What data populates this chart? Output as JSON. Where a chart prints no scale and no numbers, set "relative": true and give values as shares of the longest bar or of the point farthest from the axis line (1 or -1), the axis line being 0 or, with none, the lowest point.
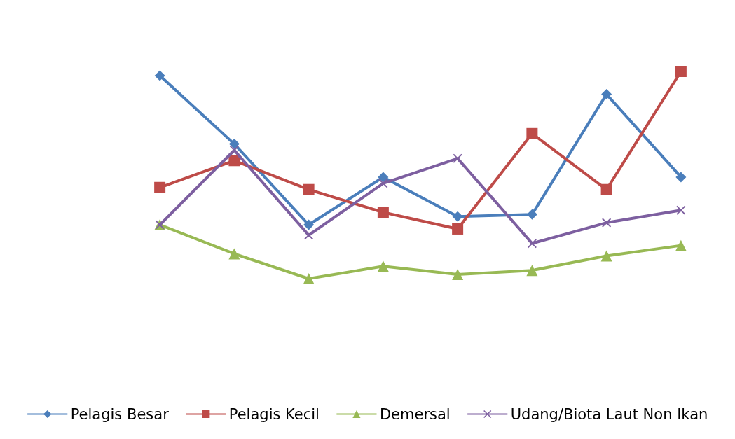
{
  "chart_data": {
    "type": "line",
    "relative": true,
    "categories": [
      null,
      null,
      null,
      null,
      null,
      null,
      null,
      null
    ],
    "series": [
      {
        "name": "Pelagis Besar",
        "color": "#4a7ebb",
        "marker": "diamond",
        "values": [
          0.98,
          0.65,
          0.26,
          0.49,
          0.3,
          0.31,
          0.89,
          0.49
        ]
      },
      {
        "name": "Pelagis Kecil",
        "color": "#be4b48",
        "marker": "square",
        "values": [
          0.44,
          0.57,
          0.43,
          0.32,
          0.24,
          0.7,
          0.43,
          1
        ]
      },
      {
        "name": "Demersal",
        "color": "#98b954",
        "marker": "triangle",
        "values": [
          0.26,
          0.12,
          0,
          0.06,
          0.02,
          0.04,
          0.11,
          0.16
        ]
      },
      {
        "name": "Udang/Biota Laut Non Ikan",
        "color": "#7d5fa0",
        "marker": "cross",
        "values": [
          0.26,
          0.62,
          0.21,
          0.46,
          0.58,
          0.17,
          0.27,
          0.33
        ]
      }
    ],
    "grid": false,
    "legend": "bottom",
    "line_style": "solid"
  }
}
